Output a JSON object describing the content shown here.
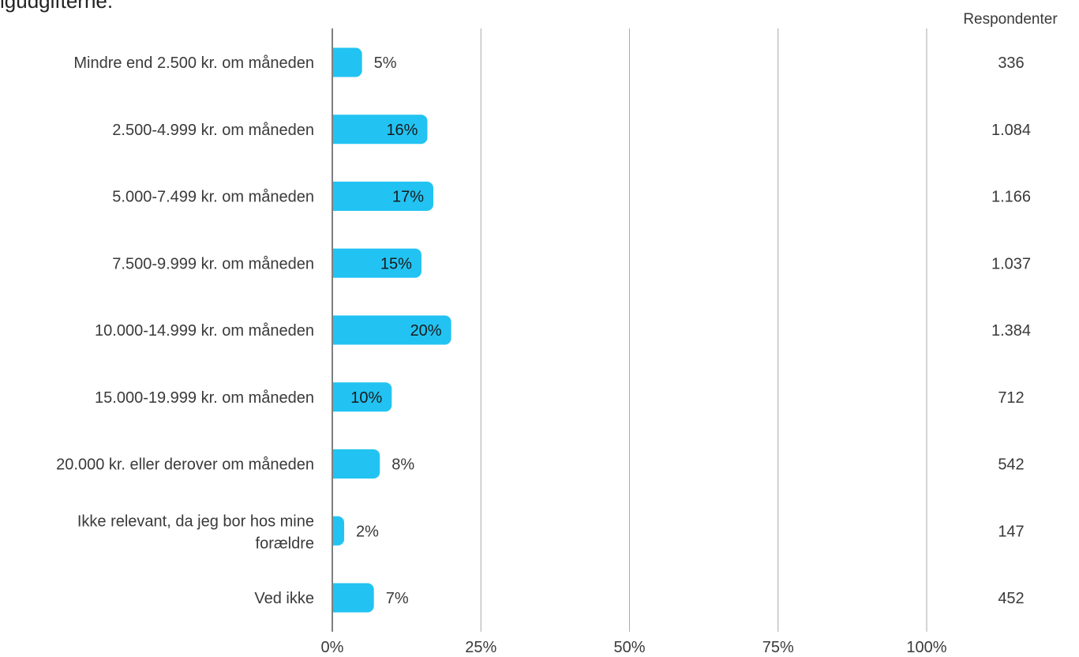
{
  "title_fragment": "igudgifterne.",
  "respondents_header": "Respondenter",
  "colors": {
    "bar": "#22c3f2",
    "grid": "#a9a9a9",
    "axis": "#7f7f7f",
    "text": "#3a3a3a"
  },
  "chart_data": {
    "type": "bar",
    "orientation": "horizontal",
    "categories": [
      "Mindre end 2.500 kr. om måneden",
      "2.500-4.999 kr. om måneden",
      "5.000-7.499 kr. om måneden",
      "7.500-9.999 kr. om måneden",
      "10.000-14.999 kr. om måneden",
      "15.000-19.999 kr. om måneden",
      "20.000 kr. eller derover om måneden",
      "Ikke relevant, da jeg bor hos mine forældre",
      "Ved ikke"
    ],
    "values": [
      5,
      16,
      17,
      15,
      20,
      10,
      8,
      2,
      7
    ],
    "value_labels": [
      "5%",
      "16%",
      "17%",
      "15%",
      "20%",
      "10%",
      "8%",
      "2%",
      "7%"
    ],
    "respondents": [
      "336",
      "1.084",
      "1.166",
      "1.037",
      "1.384",
      "712",
      "542",
      "147",
      "452"
    ],
    "xlim": [
      0,
      100
    ],
    "xticks": [
      0,
      25,
      50,
      75,
      100
    ],
    "xtick_labels": [
      "0%",
      "25%",
      "50%",
      "75%",
      "100%"
    ],
    "grid": true,
    "legend": "none"
  }
}
